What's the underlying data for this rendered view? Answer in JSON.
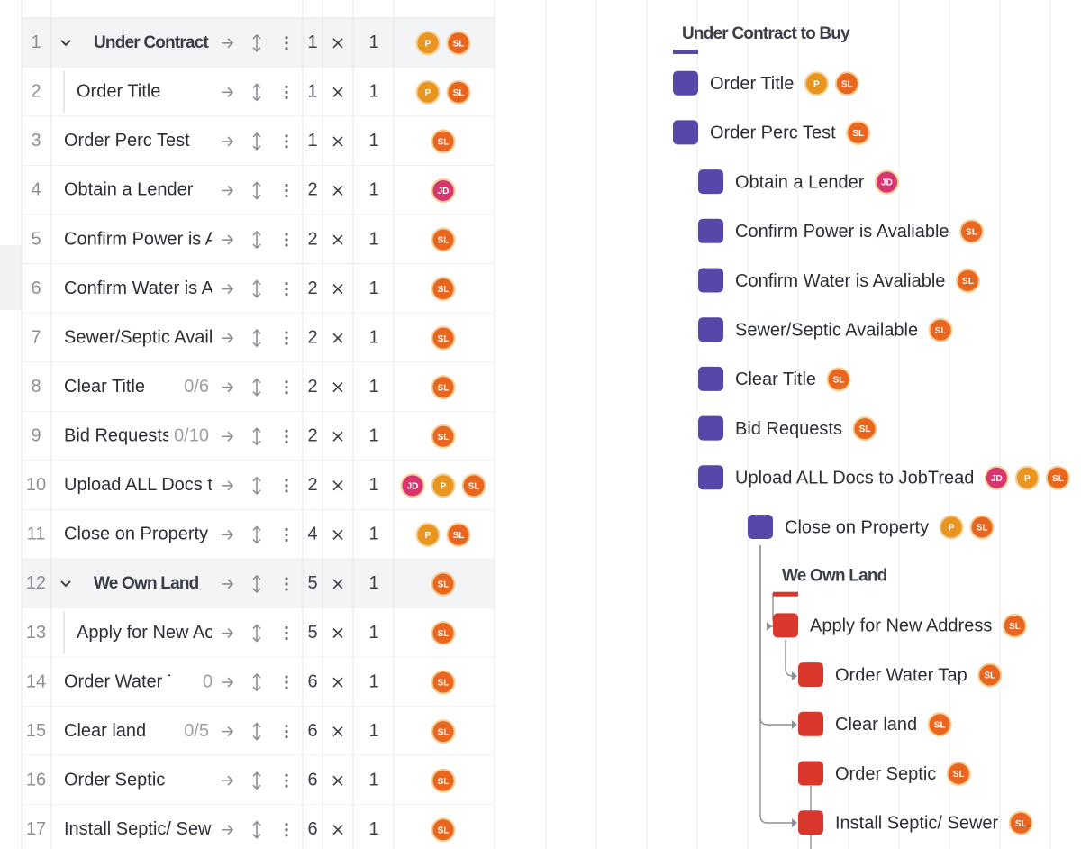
{
  "table": {
    "rows": [
      {
        "number": 1,
        "name": "Under Contract",
        "duration": 1,
        "quantity": 1,
        "assignees": [
          "P",
          "SL"
        ],
        "group": true
      },
      {
        "number": 2,
        "name": "Order Title",
        "duration": 1,
        "quantity": 1,
        "assignees": [
          "P",
          "SL"
        ],
        "indent": true
      },
      {
        "number": 3,
        "name": "Order Perc Test",
        "duration": 1,
        "quantity": 1,
        "assignees": [
          "SL"
        ]
      },
      {
        "number": 4,
        "name": "Obtain a Lender",
        "duration": 2,
        "quantity": 1,
        "assignees": [
          "JD"
        ]
      },
      {
        "number": 5,
        "name": "Confirm Power is A",
        "duration": 2,
        "quantity": 1,
        "assignees": [
          "SL"
        ]
      },
      {
        "number": 6,
        "name": "Confirm Water is A",
        "duration": 2,
        "quantity": 1,
        "assignees": [
          "SL"
        ]
      },
      {
        "number": 7,
        "name": "Sewer/Septic Avail",
        "duration": 2,
        "quantity": 1,
        "assignees": [
          "SL"
        ]
      },
      {
        "number": 8,
        "name": "Clear Title",
        "progress": "0/6",
        "duration": 2,
        "quantity": 1,
        "assignees": [
          "SL"
        ]
      },
      {
        "number": 9,
        "name": "Bid Requests",
        "progress": "0/10",
        "duration": 2,
        "quantity": 1,
        "assignees": [
          "SL"
        ]
      },
      {
        "number": 10,
        "name": "Upload ALL Docs t",
        "duration": 2,
        "quantity": 1,
        "assignees": [
          "JD",
          "P",
          "SL"
        ]
      },
      {
        "number": 11,
        "name": "Close on Property",
        "duration": 4,
        "quantity": 1,
        "assignees": [
          "P",
          "SL"
        ]
      },
      {
        "number": 12,
        "name": "We Own Land",
        "duration": 5,
        "quantity": 1,
        "assignees": [
          "SL"
        ],
        "group": true
      },
      {
        "number": 13,
        "name": "Apply for New Ac",
        "duration": 5,
        "quantity": 1,
        "assignees": [
          "SL"
        ],
        "indent": true
      },
      {
        "number": 14,
        "name": "Order Water Tap",
        "progress": "0",
        "duration": 6,
        "quantity": 1,
        "assignees": [
          "SL"
        ]
      },
      {
        "number": 15,
        "name": "Clear land",
        "progress": "0/5",
        "duration": 6,
        "quantity": 1,
        "assignees": [
          "SL"
        ]
      },
      {
        "number": 16,
        "name": "Order Septic",
        "duration": 6,
        "quantity": 1,
        "assignees": [
          "SL"
        ]
      },
      {
        "number": 17,
        "name": "Install Septic/ Sew",
        "duration": 6,
        "quantity": 1,
        "assignees": [
          "SL"
        ]
      }
    ]
  },
  "gantt": {
    "items": [
      {
        "label": "Under Contract to Buy",
        "group": true,
        "level": 0,
        "color": "#5548a8"
      },
      {
        "label": "Order Title",
        "level": 0,
        "color": "#5548a8",
        "assignees": [
          "P",
          "SL"
        ]
      },
      {
        "label": "Order Perc Test",
        "level": 0,
        "color": "#5548a8",
        "assignees": [
          "SL"
        ]
      },
      {
        "label": "Obtain a Lender",
        "level": 1,
        "color": "#5548a8",
        "assignees": [
          "JD"
        ]
      },
      {
        "label": "Confirm Power is Avaliable",
        "level": 1,
        "color": "#5548a8",
        "assignees": [
          "SL"
        ]
      },
      {
        "label": "Confirm Water is Avaliable",
        "level": 1,
        "color": "#5548a8",
        "assignees": [
          "SL"
        ]
      },
      {
        "label": "Sewer/Septic Available",
        "level": 1,
        "color": "#5548a8",
        "assignees": [
          "SL"
        ]
      },
      {
        "label": "Clear Title",
        "level": 1,
        "color": "#5548a8",
        "assignees": [
          "SL"
        ]
      },
      {
        "label": "Bid Requests",
        "level": 1,
        "color": "#5548a8",
        "assignees": [
          "SL"
        ]
      },
      {
        "label": "Upload ALL Docs to JobTread",
        "level": 1,
        "color": "#5548a8",
        "assignees": [
          "JD",
          "P",
          "SL"
        ]
      },
      {
        "label": "Close on Property",
        "level": 2,
        "color": "#5548a8",
        "assignees": [
          "P",
          "SL"
        ]
      },
      {
        "label": "We Own Land",
        "group": true,
        "level": 3,
        "color": "#d9372b"
      },
      {
        "label": "Apply for New Address",
        "level": 3,
        "color": "#d9372b",
        "assignees": [
          "SL"
        ]
      },
      {
        "label": "Order Water Tap",
        "level": 4,
        "color": "#d9372b",
        "assignees": [
          "SL"
        ]
      },
      {
        "label": "Clear land",
        "level": 4,
        "color": "#d9372b",
        "assignees": [
          "SL"
        ]
      },
      {
        "label": "Order Septic",
        "level": 4,
        "color": "#d9372b",
        "assignees": [
          "SL"
        ]
      },
      {
        "label": "Install Septic/ Sewer",
        "level": 4,
        "color": "#d9372b",
        "assignees": [
          "SL"
        ]
      }
    ]
  },
  "avatar_colors": {
    "P": "#e8961f",
    "SL": "#e8661f",
    "JD": "#d6356f"
  }
}
